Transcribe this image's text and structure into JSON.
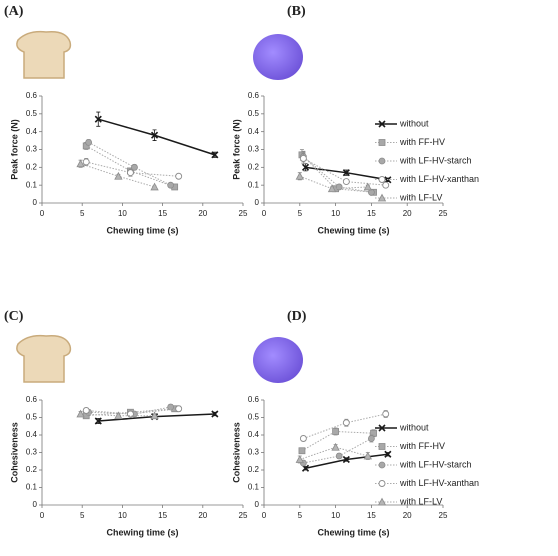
{
  "chart_data": [
    {
      "type": "line",
      "panel": "(A)",
      "xlabel": "Chewing time (s)",
      "ylabel": "Peak force (N)",
      "xlim": [
        0,
        25
      ],
      "xticks": [
        0,
        5,
        10,
        15,
        20,
        25
      ],
      "ylim": [
        0,
        0.6
      ],
      "yticks": [
        0,
        0.1,
        0.2,
        0.3,
        0.4,
        0.5,
        0.6
      ],
      "series": [
        {
          "color": "#1a1a1a",
          "marker": "x",
          "line_style": "solid",
          "x": [
            7,
            14,
            21.5
          ],
          "values": [
            0.47,
            0.38,
            0.27
          ],
          "errors": [
            0.04,
            0.03,
            0.015
          ]
        },
        {
          "color": "#8c8c8c",
          "marker": "square",
          "line_style": "dotted",
          "x": [
            5.5,
            11,
            16.5
          ],
          "values": [
            0.32,
            0.18,
            0.09
          ],
          "errors": [
            0.02,
            0.015,
            0.01
          ]
        },
        {
          "color": "#8c8c8c",
          "marker": "circle",
          "line_style": "dotted",
          "x": [
            5.8,
            11.5,
            16
          ],
          "values": [
            0.34,
            0.2,
            0.1
          ],
          "errors": [
            0.015,
            0.015,
            0.01
          ]
        },
        {
          "color": "#8c8c8c",
          "marker": "open-circle",
          "line_style": "dotted",
          "x": [
            5.5,
            11,
            17
          ],
          "values": [
            0.23,
            0.17,
            0.15
          ],
          "errors": [
            0.02,
            0.02,
            0.01
          ]
        },
        {
          "color": "#8c8c8c",
          "marker": "triangle",
          "line_style": "dotted",
          "x": [
            4.8,
            9.5,
            14
          ],
          "values": [
            0.22,
            0.15,
            0.09
          ],
          "errors": [
            0.02,
            0.01,
            0.005
          ]
        }
      ]
    },
    {
      "type": "line",
      "panel": "(B)",
      "xlabel": "Chewing time (s)",
      "ylabel": "Peak force (N)",
      "xlim": [
        0,
        25
      ],
      "xticks": [
        0,
        5,
        10,
        15,
        20,
        25
      ],
      "ylim": [
        0,
        0.6
      ],
      "yticks": [
        0,
        0.1,
        0.2,
        0.3,
        0.4,
        0.5,
        0.6
      ],
      "legend": "right",
      "series": [
        {
          "name": "without",
          "color": "#1a1a1a",
          "marker": "x",
          "line_style": "solid",
          "x": [
            5.8,
            11.5,
            17.3
          ],
          "values": [
            0.2,
            0.17,
            0.13
          ],
          "errors": [
            0.02,
            0.015,
            0.01
          ]
        },
        {
          "name": "with FF-HV",
          "color": "#8c8c8c",
          "marker": "square",
          "line_style": "dotted",
          "x": [
            5.3,
            10,
            15.3
          ],
          "values": [
            0.27,
            0.08,
            0.06
          ],
          "errors": [
            0.03,
            0.01,
            0.005
          ]
        },
        {
          "name": "with LF-HV-starch",
          "color": "#8c8c8c",
          "marker": "circle",
          "line_style": "dotted",
          "x": [
            5.5,
            10.5,
            15
          ],
          "values": [
            0.26,
            0.09,
            0.06
          ],
          "errors": [
            0.03,
            0.01,
            0.005
          ]
        },
        {
          "name": "with LF-HV-xanthan",
          "color": "#8c8c8c",
          "marker": "open-circle",
          "line_style": "dotted",
          "x": [
            5.5,
            11.5,
            17
          ],
          "values": [
            0.25,
            0.12,
            0.1
          ],
          "errors": [
            0.03,
            0.01,
            0.01
          ]
        },
        {
          "name": "with LF-LV",
          "color": "#8c8c8c",
          "marker": "triangle",
          "line_style": "dotted",
          "x": [
            5,
            9.5,
            14.5
          ],
          "values": [
            0.15,
            0.08,
            0.09
          ],
          "errors": [
            0.02,
            0.01,
            0.01
          ]
        }
      ]
    },
    {
      "type": "line",
      "panel": "(C)",
      "xlabel": "Chewing time (s)",
      "ylabel": "Cohesiveness",
      "xlim": [
        0,
        25
      ],
      "xticks": [
        0,
        5,
        10,
        15,
        20,
        25
      ],
      "ylim": [
        0,
        0.6
      ],
      "yticks": [
        0,
        0.1,
        0.2,
        0.3,
        0.4,
        0.5,
        0.6
      ],
      "series": [
        {
          "color": "#1a1a1a",
          "marker": "x",
          "line_style": "solid",
          "x": [
            7,
            14,
            21.5
          ],
          "values": [
            0.48,
            0.505,
            0.52
          ],
          "errors": [
            0.015,
            0.01,
            0.01
          ]
        },
        {
          "color": "#8c8c8c",
          "marker": "square",
          "line_style": "dotted",
          "x": [
            5.5,
            11,
            16.5
          ],
          "values": [
            0.51,
            0.53,
            0.55
          ],
          "errors": [
            0.015,
            0.015,
            0.015
          ]
        },
        {
          "color": "#8c8c8c",
          "marker": "circle",
          "line_style": "dotted",
          "x": [
            5.8,
            11.5,
            16
          ],
          "values": [
            0.53,
            0.52,
            0.56
          ],
          "errors": [
            0.015,
            0.015,
            0.015
          ]
        },
        {
          "color": "#8c8c8c",
          "marker": "open-circle",
          "line_style": "dotted",
          "x": [
            5.5,
            11,
            17
          ],
          "values": [
            0.54,
            0.52,
            0.55
          ],
          "errors": [
            0.015,
            0.015,
            0.015
          ]
        },
        {
          "color": "#8c8c8c",
          "marker": "triangle",
          "line_style": "dotted",
          "x": [
            4.8,
            9.5,
            14
          ],
          "values": [
            0.52,
            0.51,
            0.51
          ],
          "errors": [
            0.015,
            0.01,
            0.01
          ]
        }
      ]
    },
    {
      "type": "line",
      "panel": "(D)",
      "xlabel": "Chewing time (s)",
      "ylabel": "Cohesiveness",
      "xlim": [
        0,
        25
      ],
      "xticks": [
        0,
        5,
        10,
        15,
        20,
        25
      ],
      "ylim": [
        0,
        0.6
      ],
      "yticks": [
        0,
        0.1,
        0.2,
        0.3,
        0.4,
        0.5,
        0.6
      ],
      "legend": "right",
      "series": [
        {
          "name": "without",
          "color": "#1a1a1a",
          "marker": "x",
          "line_style": "solid",
          "x": [
            5.8,
            11.5,
            17.3
          ],
          "values": [
            0.21,
            0.26,
            0.29
          ],
          "errors": [
            0.01,
            0.01,
            0.01
          ]
        },
        {
          "name": "with FF-HV",
          "color": "#8c8c8c",
          "marker": "square",
          "line_style": "dotted",
          "x": [
            5.3,
            10,
            15.3
          ],
          "values": [
            0.31,
            0.42,
            0.41
          ],
          "errors": [
            0.015,
            0.02,
            0.02
          ]
        },
        {
          "name": "with LF-HV-starch",
          "color": "#8c8c8c",
          "marker": "circle",
          "line_style": "dotted",
          "x": [
            5.5,
            10.5,
            15
          ],
          "values": [
            0.24,
            0.28,
            0.38
          ],
          "errors": [
            0.015,
            0.015,
            0.02
          ]
        },
        {
          "name": "with LF-HV-xanthan",
          "color": "#8c8c8c",
          "marker": "open-circle",
          "line_style": "dotted",
          "x": [
            5.5,
            11.5,
            17
          ],
          "values": [
            0.38,
            0.47,
            0.52
          ],
          "errors": [
            0.015,
            0.02,
            0.02
          ]
        },
        {
          "name": "with LF-LV",
          "color": "#8c8c8c",
          "marker": "triangle",
          "line_style": "dotted",
          "x": [
            5,
            10,
            14.5
          ],
          "values": [
            0.26,
            0.33,
            0.28
          ],
          "errors": [
            0.02,
            0.015,
            0.02
          ]
        }
      ]
    }
  ]
}
